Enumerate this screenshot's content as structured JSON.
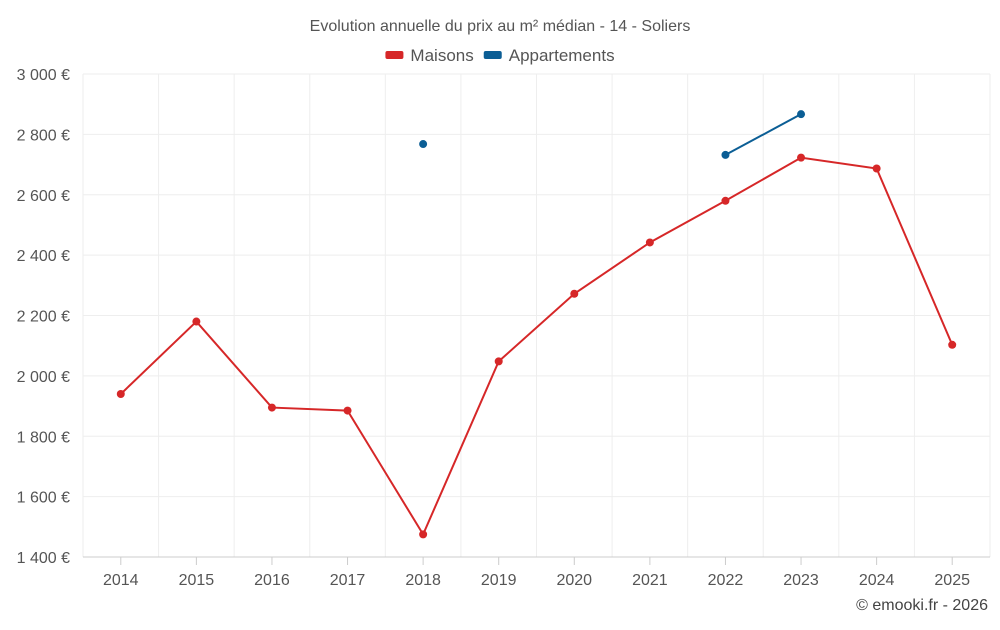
{
  "chart_data": {
    "type": "line",
    "title": "Evolution annuelle du prix au m² médian - 14 - Soliers",
    "xlabel": "",
    "ylabel": "",
    "categories": [
      "2014",
      "2015",
      "2016",
      "2017",
      "2018",
      "2019",
      "2020",
      "2021",
      "2022",
      "2023",
      "2024",
      "2025"
    ],
    "ylim": [
      1400,
      3000
    ],
    "yticks": [
      1400,
      1600,
      1800,
      2000,
      2200,
      2400,
      2600,
      2800,
      3000
    ],
    "ytick_labels": [
      "1 400 €",
      "1 600 €",
      "1 800 €",
      "2 000 €",
      "2 200 €",
      "2 400 €",
      "2 600 €",
      "2 800 €",
      "3 000 €"
    ],
    "grid": true,
    "legend_position": "top-center",
    "series": [
      {
        "name": "Maisons",
        "color": "#d62728",
        "values": [
          1940,
          2180,
          1895,
          1885,
          1475,
          2048,
          2272,
          2442,
          2580,
          2723,
          2687,
          2103
        ]
      },
      {
        "name": "Appartements",
        "color": "#0b5e95",
        "values": [
          null,
          null,
          null,
          null,
          2768,
          null,
          null,
          null,
          2732,
          2867,
          null,
          null
        ]
      }
    ],
    "credit": "© emooki.fr - 2026"
  }
}
